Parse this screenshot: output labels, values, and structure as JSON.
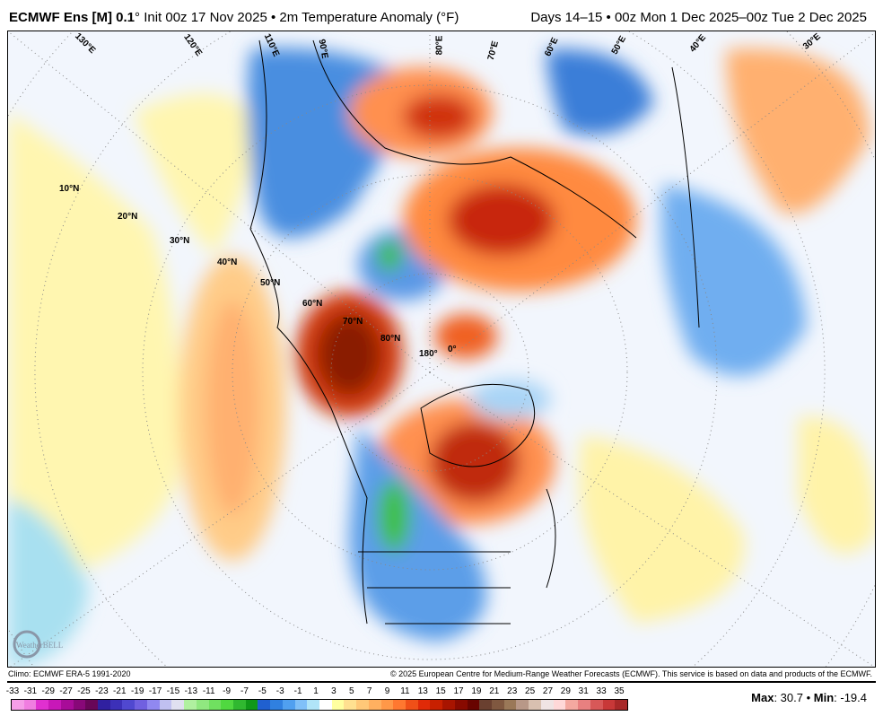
{
  "header": {
    "model": "ECMWF Ens [M] 0.1",
    "deg": "°",
    "init": "Init 00z 17 Nov 2025 • 2m Temperature Anomaly (°F)",
    "valid": "Days 14–15 • 00z Mon 1 Dec 2025–00z Tue 2 Dec 2025"
  },
  "map": {
    "lat_labels": [
      "10°N",
      "20°N",
      "30°N",
      "40°N",
      "50°N",
      "60°N",
      "70°N",
      "80°N"
    ],
    "pole_labels": [
      "180°",
      "0°"
    ],
    "lon_labels": [
      "130°E",
      "120°E",
      "110°E",
      "90°E",
      "80°E",
      "70°E",
      "60°E",
      "50°E",
      "40°E",
      "30°E"
    ],
    "logo": "WeatherBELL"
  },
  "footer": {
    "climo": "Climo: ECMWF ERA-5 1991-2020",
    "copyright": "© 2025 European Centre for Medium-Range Weather Forecasts (ECMWF). This service is based on data and products of the ECMWF.",
    "max_label": "Max",
    "max_value": ": 30.7 • ",
    "min_label": "Min",
    "min_value": ": -19.4"
  },
  "colorbar": {
    "ticks": [
      "-33",
      "-31",
      "-29",
      "-27",
      "-25",
      "-23",
      "-21",
      "-19",
      "-17",
      "-15",
      "-13",
      "-11",
      "-9",
      "-7",
      "-5",
      "-3",
      "-1",
      "1",
      "3",
      "5",
      "7",
      "9",
      "11",
      "13",
      "15",
      "17",
      "19",
      "21",
      "23",
      "25",
      "27",
      "29",
      "31",
      "33",
      "35"
    ],
    "colors": [
      "#f59ee8",
      "#f07de0",
      "#e030d0",
      "#c818b8",
      "#a80c98",
      "#880878",
      "#680658",
      "#3020a0",
      "#3c30b8",
      "#5048d0",
      "#7060e0",
      "#9088f0",
      "#c0c0f0",
      "#e0e0f0",
      "#b0f0a0",
      "#90e880",
      "#70e060",
      "#50d840",
      "#30b830",
      "#109818",
      "#2060d0",
      "#3080e0",
      "#50a0f0",
      "#80c0f8",
      "#b0e4f8",
      "#ffffff",
      "#ffffa0",
      "#ffe090",
      "#ffc878",
      "#ffb060",
      "#ff9848",
      "#ff7830",
      "#f05018",
      "#e02a08",
      "#c82000",
      "#a81400",
      "#880a00",
      "#680400",
      "#6a4030",
      "#805840",
      "#9a7858",
      "#b89888",
      "#d8c0b0",
      "#f0e4e4",
      "#ffd8d8",
      "#f4a8a0",
      "#e88080",
      "#d85858",
      "#c83838",
      "#a82828"
    ]
  }
}
